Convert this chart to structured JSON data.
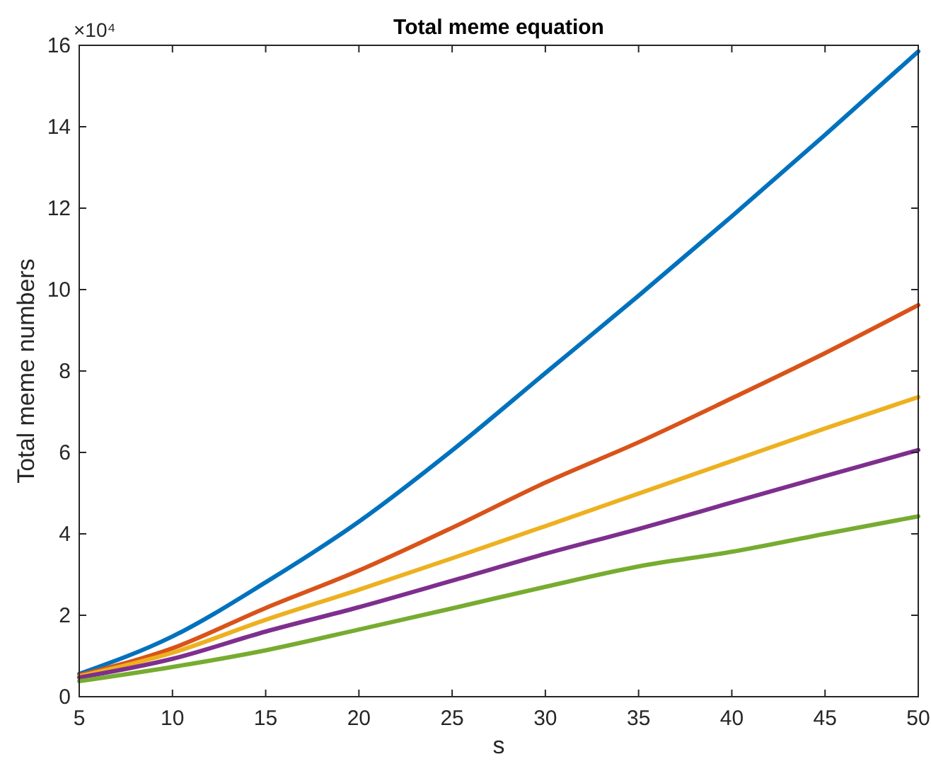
{
  "chart_data": {
    "type": "line",
    "title": "Total meme equation",
    "xlabel": "s",
    "ylabel": "Total meme numbers",
    "annotations": [
      "×10⁴"
    ],
    "x": [
      5,
      10,
      15,
      20,
      25,
      30,
      35,
      40,
      45,
      50
    ],
    "series": [
      {
        "color": "#0072bd",
        "values": [
          0.56,
          1.48,
          2.81,
          4.3,
          6.05,
          7.95,
          9.85,
          11.8,
          13.8,
          15.85
        ]
      },
      {
        "color": "#d95319",
        "values": [
          0.53,
          1.19,
          2.18,
          3.1,
          4.15,
          5.26,
          6.25,
          7.33,
          8.44,
          9.62
        ]
      },
      {
        "color": "#edb120",
        "values": [
          0.5,
          1.08,
          1.89,
          2.63,
          3.4,
          4.19,
          4.99,
          5.79,
          6.59,
          7.36
        ]
      },
      {
        "color": "#7e2f8e",
        "values": [
          0.47,
          0.93,
          1.6,
          2.2,
          2.85,
          3.51,
          4.12,
          4.77,
          5.42,
          6.06
        ]
      },
      {
        "color": "#77ac30",
        "values": [
          0.38,
          0.73,
          1.14,
          1.65,
          2.17,
          2.7,
          3.2,
          3.56,
          4.0,
          4.43
        ]
      }
    ],
    "xlim": [
      5,
      50
    ],
    "xticks": [
      5,
      10,
      15,
      20,
      25,
      30,
      35,
      40,
      45,
      50
    ],
    "ylim": [
      0,
      16
    ],
    "yticks": [
      0,
      2,
      4,
      6,
      8,
      10,
      12,
      14,
      16
    ],
    "marker": "none",
    "line_style": "solid"
  }
}
